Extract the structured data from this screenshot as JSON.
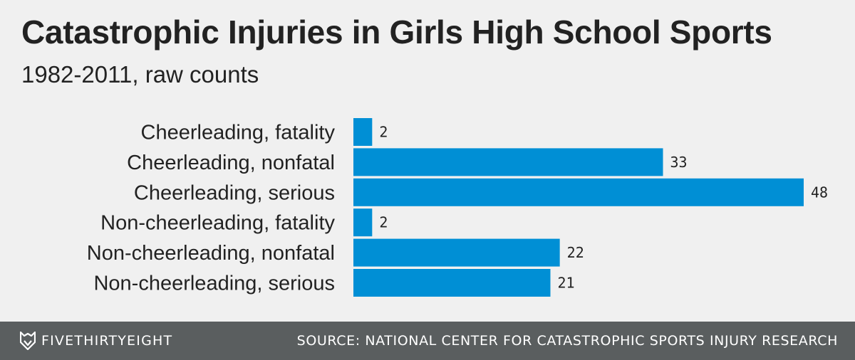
{
  "header": {
    "title": "Catastrophic Injuries in Girls High School Sports",
    "subtitle": "1982-2011, raw counts"
  },
  "footer": {
    "brand": "FIVETHIRTYEIGHT",
    "brand_icon": "fox-logo-icon",
    "source": "SOURCE: NATIONAL CENTER FOR CATASTROPHIC SPORTS INJURY RESEARCH"
  },
  "colors": {
    "bar": "#008fd5",
    "background": "#f0f0f0",
    "footer": "#5a5e5f"
  },
  "chart_data": {
    "type": "bar",
    "orientation": "horizontal",
    "title": "Catastrophic Injuries in Girls High School Sports",
    "subtitle": "1982-2011, raw counts",
    "categories": [
      "Cheerleading, fatality",
      "Cheerleading, nonfatal",
      "Cheerleading, serious",
      "Non-cheerleading, fatality",
      "Non-cheerleading, nonfatal",
      "Non-cheerleading, serious"
    ],
    "values": [
      2,
      33,
      48,
      2,
      22,
      21
    ],
    "value_labels": [
      "2",
      "33",
      "48",
      "2",
      "22",
      "21"
    ],
    "xlim": [
      0,
      48
    ],
    "grid": false,
    "legend": "none"
  }
}
